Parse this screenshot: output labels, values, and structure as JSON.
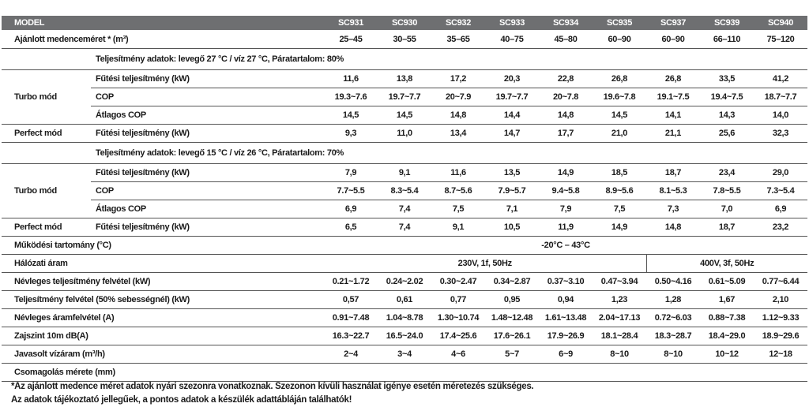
{
  "header": {
    "label": "MODEL",
    "models": [
      "SC931",
      "SC930",
      "SC932",
      "SC933",
      "SC934",
      "SC935",
      "SC937",
      "SC939",
      "SC940"
    ]
  },
  "rows": [
    {
      "label": "Ajánlott medenceméret * (m³)",
      "values": [
        "25–45",
        "30–55",
        "35–65",
        "40–75",
        "45–80",
        "60–90",
        "60–90",
        "66–110",
        "75–120"
      ]
    },
    {
      "title": "Teljesítmény adatok: levegő 27 °C / víz 27 °C, Páratartalom: 80%"
    },
    {
      "group": "Turbo mód",
      "rows": [
        {
          "label": "Fűtési teljesítmény (kW)",
          "values": [
            "11,6",
            "13,8",
            "17,2",
            "20,3",
            "22,8",
            "26,8",
            "26,8",
            "33,5",
            "41,2"
          ]
        },
        {
          "label": "COP",
          "values": [
            "19.3~7.6",
            "19.7~7.7",
            "20~7.9",
            "19.7~7.7",
            "20~7.8",
            "19.6~7.8",
            "19.1~7.5",
            "19.4~7.5",
            "18.7~7.7"
          ]
        },
        {
          "label": "Átlagos COP",
          "values": [
            "14,5",
            "14,5",
            "14,8",
            "14,4",
            "14,8",
            "14,5",
            "14,1",
            "14,3",
            "14,0"
          ]
        }
      ]
    },
    {
      "group": "Perfect mód",
      "rows": [
        {
          "label": "Fűtési teljesítmény (kW)",
          "values": [
            "9,3",
            "11,0",
            "13,4",
            "14,7",
            "17,7",
            "21,0",
            "21,1",
            "25,6",
            "32,3"
          ]
        }
      ]
    },
    {
      "title": "Teljesítmény adatok: levegő 15 °C / víz 26 °C, Páratartalom: 70%"
    },
    {
      "group": "Turbo mód",
      "rows": [
        {
          "label": "Fűtési teljesítmény (kW)",
          "values": [
            "7,9",
            "9,1",
            "11,6",
            "13,5",
            "14,9",
            "18,5",
            "18,7",
            "23,4",
            "29,0"
          ]
        },
        {
          "label": "COP",
          "values": [
            "7.7~5.5",
            "8.3~5.4",
            "8.7~5.6",
            "7.9~5.7",
            "9.4~5.8",
            "8.9~5.6",
            "8.1~5.3",
            "7.8~5.5",
            "7.3~5.4"
          ]
        },
        {
          "label": "Átlagos COP",
          "values": [
            "6,9",
            "7,4",
            "7,5",
            "7,1",
            "7,9",
            "7,5",
            "7,3",
            "7,0",
            "6,9"
          ]
        }
      ]
    },
    {
      "group": "Perfect mód",
      "rows": [
        {
          "label": "Fűtési teljesítmény (kW)",
          "values": [
            "6,5",
            "7,4",
            "9,1",
            "10,5",
            "11,9",
            "14,9",
            "14,8",
            "18,7",
            "23,2"
          ]
        }
      ]
    },
    {
      "label": "Működési tartomány (°C)",
      "values": [
        "-20°C – 43°C"
      ]
    },
    {
      "label": "Hálózati áram",
      "values": [
        "230V, 1f, 50Hz",
        "400V, 3f, 50Hz"
      ]
    },
    {
      "label": "Névleges teljesítmény felvétel (kW)",
      "values": [
        "0.21~1.72",
        "0.24~2.02",
        "0.30~2.47",
        "0.34~2.87",
        "0.37~3.10",
        "0.47~3.94",
        "0.50~4.16",
        "0.61~5.09",
        "0.77~6.44"
      ]
    },
    {
      "label": "Teljesítmény felvétel (50% sebességnél) (kW)",
      "values": [
        "0,57",
        "0,61",
        "0,77",
        "0,95",
        "0,94",
        "1,23",
        "1,28",
        "1,67",
        "2,10"
      ]
    },
    {
      "label": "Névleges áramfelvétel (A)",
      "values": [
        "0.91~7.48",
        "1.04~8.78",
        "1.30~10.74",
        "1.48~12.48",
        "1.61~13.48",
        "2.04~17.13",
        "0.72~6.03",
        "0.88~7.38",
        "1.12~9.33"
      ]
    },
    {
      "label": "Zajszint 10m dB(A)",
      "values": [
        "16.3~22.7",
        "16.5~24.0",
        "17.4~25.6",
        "17.6~26.1",
        "17.9~26.9",
        "18.1~28.4",
        "18.3~28.7",
        "18.4~29.0",
        "18.9~29.6"
      ]
    },
    {
      "label": "Javasolt vízáram (m³/h)",
      "values": [
        "2~4",
        "3~4",
        "4~6",
        "5~7",
        "6~9",
        "8~10",
        "8~10",
        "10~12",
        "12~18"
      ]
    },
    {
      "label": "Csomagolás mérete (mm)",
      "values": []
    }
  ],
  "footnotes": [
    "*Az ajánlott medence méret adatok nyári szezonra vonatkoznak. Szezonon kívüli használat igénye esetén méretezés szükséges.",
    "Az adatok tájékoztató jellegűek, a pontos adatok a készülék adattábláján találhatók!"
  ]
}
